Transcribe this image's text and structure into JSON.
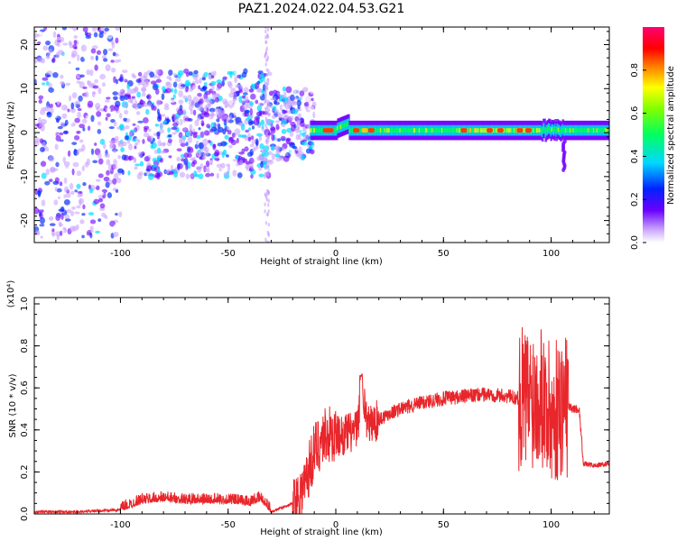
{
  "title": "PAZ1.2024.022.04.53.G21",
  "chart_data": [
    {
      "type": "heatmap",
      "xlabel": "Height of straight line (km)",
      "ylabel": "Frequency (Hz)",
      "xlim": [
        -140,
        127
      ],
      "ylim": [
        -25,
        24
      ],
      "xticks": [
        -100,
        -50,
        0,
        50,
        100
      ],
      "yticks": [
        -20,
        -10,
        0,
        10,
        20
      ],
      "colorbar": {
        "label": "Normalized spectral amplitude",
        "range": [
          0,
          1
        ],
        "ticks": [
          "0.0",
          "0.2",
          "0.4",
          "0.6",
          "0.8"
        ],
        "colormap": [
          "#ffffff",
          "#6a00ff",
          "#0033ff",
          "#00e5ff",
          "#00ff40",
          "#ffff00",
          "#ff8000",
          "#ff0000",
          "#ff0080"
        ]
      },
      "description_values": {
        "line_center_hz": 0.5,
        "stable_from_km": -10,
        "stable_to_km": 127
      }
    },
    {
      "type": "line",
      "xlabel": "Height of straight line (km)",
      "ylabel": "SNR (10 * v/v)",
      "exponent_label": "(x10⁴)",
      "xlim": [
        -140,
        127
      ],
      "ylim": [
        0,
        1.03
      ],
      "xticks": [
        -100,
        -50,
        0,
        50,
        100
      ],
      "yticks": [
        "0.0",
        "0.2",
        "0.4",
        "0.6",
        "0.8",
        "1.0"
      ],
      "color": "#e8262b",
      "series": [
        {
          "x": [
            -140,
            -120,
            -100,
            -90,
            -80,
            -70,
            -60,
            -50,
            -40,
            -35,
            -32,
            -30,
            -25,
            -20,
            -15,
            -10,
            -5,
            0,
            5,
            10,
            12,
            15,
            20,
            25,
            30,
            40,
            50,
            60,
            70,
            80,
            85,
            90,
            95,
            100,
            103,
            105,
            107,
            110,
            113,
            115,
            120,
            127
          ],
          "values": [
            0.01,
            0.01,
            0.02,
            0.06,
            0.07,
            0.06,
            0.06,
            0.06,
            0.05,
            0.07,
            0.04,
            0.01,
            0.03,
            0.05,
            0.12,
            0.3,
            0.38,
            0.37,
            0.38,
            0.4,
            0.6,
            0.42,
            0.45,
            0.48,
            0.5,
            0.53,
            0.55,
            0.56,
            0.57,
            0.56,
            0.55,
            0.55,
            0.6,
            0.45,
            0.5,
            0.52,
            0.52,
            0.5,
            0.5,
            0.24,
            0.23,
            0.24
          ]
        }
      ]
    }
  ]
}
